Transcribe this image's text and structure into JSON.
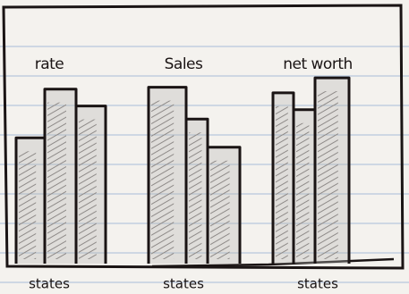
{
  "chart_data": [
    {
      "type": "bar",
      "title": "rate",
      "x_label": "states",
      "categories": [
        null,
        null,
        null
      ],
      "values": [
        67,
        93,
        84
      ],
      "color": "#b8b6b4",
      "ylim": [
        0,
        100
      ]
    },
    {
      "type": "bar",
      "title": "Sales",
      "x_label": "states",
      "categories": [
        null,
        null,
        null
      ],
      "values": [
        94,
        77,
        62
      ],
      "color": "#b8b6b4",
      "ylim": [
        0,
        100
      ]
    },
    {
      "type": "bar",
      "title": "net worth",
      "x_label": "states",
      "categories": [
        null,
        null,
        null
      ],
      "values": [
        91,
        82,
        99
      ],
      "color": "#b8b6b4",
      "ylim": [
        0,
        100
      ]
    }
  ]
}
